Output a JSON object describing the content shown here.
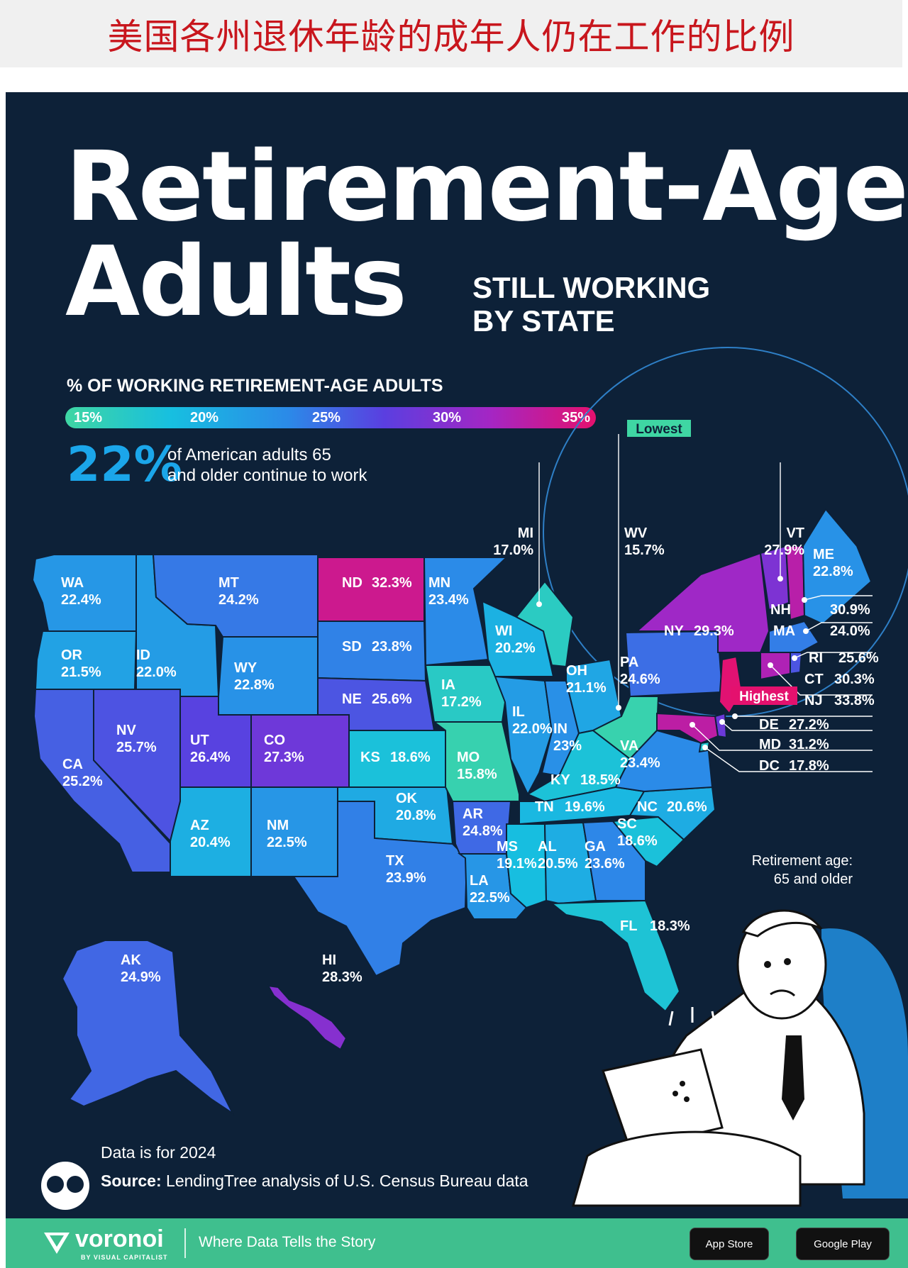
{
  "cn_title": "美国各州退休年龄的成年人仍在工作的比例",
  "title_line1": "Retirement-Age",
  "title_line2": "Adults",
  "subtitle_line1": "STILL WORKING",
  "subtitle_line2": "BY STATE",
  "legend": {
    "title": "% OF WORKING RETIREMENT-AGE ADULTS",
    "ticks": [
      "15%",
      "20%",
      "25%",
      "30%",
      "35%"
    ],
    "colors": [
      "#3fd6a3",
      "#17bfe0",
      "#2b8ae8",
      "#5a3fe0",
      "#a426c4",
      "#e4116e"
    ]
  },
  "national": {
    "value": "22%",
    "line1": "of American adults 65",
    "line2": "and older continue to work"
  },
  "states": [
    {
      "abbr": "WA",
      "value": "22.4%"
    },
    {
      "abbr": "OR",
      "value": "21.5%"
    },
    {
      "abbr": "CA",
      "value": "25.2%"
    },
    {
      "abbr": "ID",
      "value": "22.0%"
    },
    {
      "abbr": "NV",
      "value": "25.7%"
    },
    {
      "abbr": "MT",
      "value": "24.2%"
    },
    {
      "abbr": "WY",
      "value": "22.8%"
    },
    {
      "abbr": "UT",
      "value": "26.4%"
    },
    {
      "abbr": "AZ",
      "value": "20.4%"
    },
    {
      "abbr": "CO",
      "value": "27.3%"
    },
    {
      "abbr": "NM",
      "value": "22.5%"
    },
    {
      "abbr": "ND",
      "value": "32.3%"
    },
    {
      "abbr": "SD",
      "value": "23.8%"
    },
    {
      "abbr": "NE",
      "value": "25.6%"
    },
    {
      "abbr": "KS",
      "value": "18.6%"
    },
    {
      "abbr": "OK",
      "value": "20.8%"
    },
    {
      "abbr": "TX",
      "value": "23.9%"
    },
    {
      "abbr": "MN",
      "value": "23.4%"
    },
    {
      "abbr": "IA",
      "value": "17.2%"
    },
    {
      "abbr": "MO",
      "value": "15.8%"
    },
    {
      "abbr": "AR",
      "value": "24.8%"
    },
    {
      "abbr": "LA",
      "value": "22.5%"
    },
    {
      "abbr": "WI",
      "value": "20.2%"
    },
    {
      "abbr": "IL",
      "value": "22.0%"
    },
    {
      "abbr": "MI",
      "value": "17.0%"
    },
    {
      "abbr": "IN",
      "value": "23%"
    },
    {
      "abbr": "OH",
      "value": "21.1%"
    },
    {
      "abbr": "KY",
      "value": "18.5%"
    },
    {
      "abbr": "TN",
      "value": "19.6%"
    },
    {
      "abbr": "MS",
      "value": "19.1%"
    },
    {
      "abbr": "AL",
      "value": "20.5%"
    },
    {
      "abbr": "GA",
      "value": "23.6%"
    },
    {
      "abbr": "FL",
      "value": "18.3%"
    },
    {
      "abbr": "SC",
      "value": "18.6%"
    },
    {
      "abbr": "NC",
      "value": "20.6%"
    },
    {
      "abbr": "VA",
      "value": "23.4%"
    },
    {
      "abbr": "WV",
      "value": "15.7%"
    },
    {
      "abbr": "PA",
      "value": "24.6%"
    },
    {
      "abbr": "NY",
      "value": "29.3%"
    },
    {
      "abbr": "VT",
      "value": "27.9%"
    },
    {
      "abbr": "ME",
      "value": "22.8%"
    },
    {
      "abbr": "NH",
      "value": "30.9%"
    },
    {
      "abbr": "MA",
      "value": "24.0%"
    },
    {
      "abbr": "RI",
      "value": "25.6%"
    },
    {
      "abbr": "CT",
      "value": "30.3%"
    },
    {
      "abbr": "NJ",
      "value": "33.8%"
    },
    {
      "abbr": "DE",
      "value": "27.2%"
    },
    {
      "abbr": "MD",
      "value": "31.2%"
    },
    {
      "abbr": "DC",
      "value": "17.8%"
    },
    {
      "abbr": "AK",
      "value": "24.9%"
    },
    {
      "abbr": "HI",
      "value": "28.3%"
    }
  ],
  "badges": {
    "lowest": "Lowest",
    "highest": "Highest"
  },
  "retirement_note_line1": "Retirement age:",
  "retirement_note_line2": "65 and older",
  "data_note": "Data is for 2024",
  "source_label": "Source:",
  "source_text": "LendingTree analysis of U.S. Census Bureau data",
  "footer": {
    "brand": "voronoi",
    "brand_sub": "BY VISUAL CAPITALIST",
    "tagline": "Where Data Tells the Story",
    "app_store": "App Store",
    "google_play": "Google Play"
  }
}
